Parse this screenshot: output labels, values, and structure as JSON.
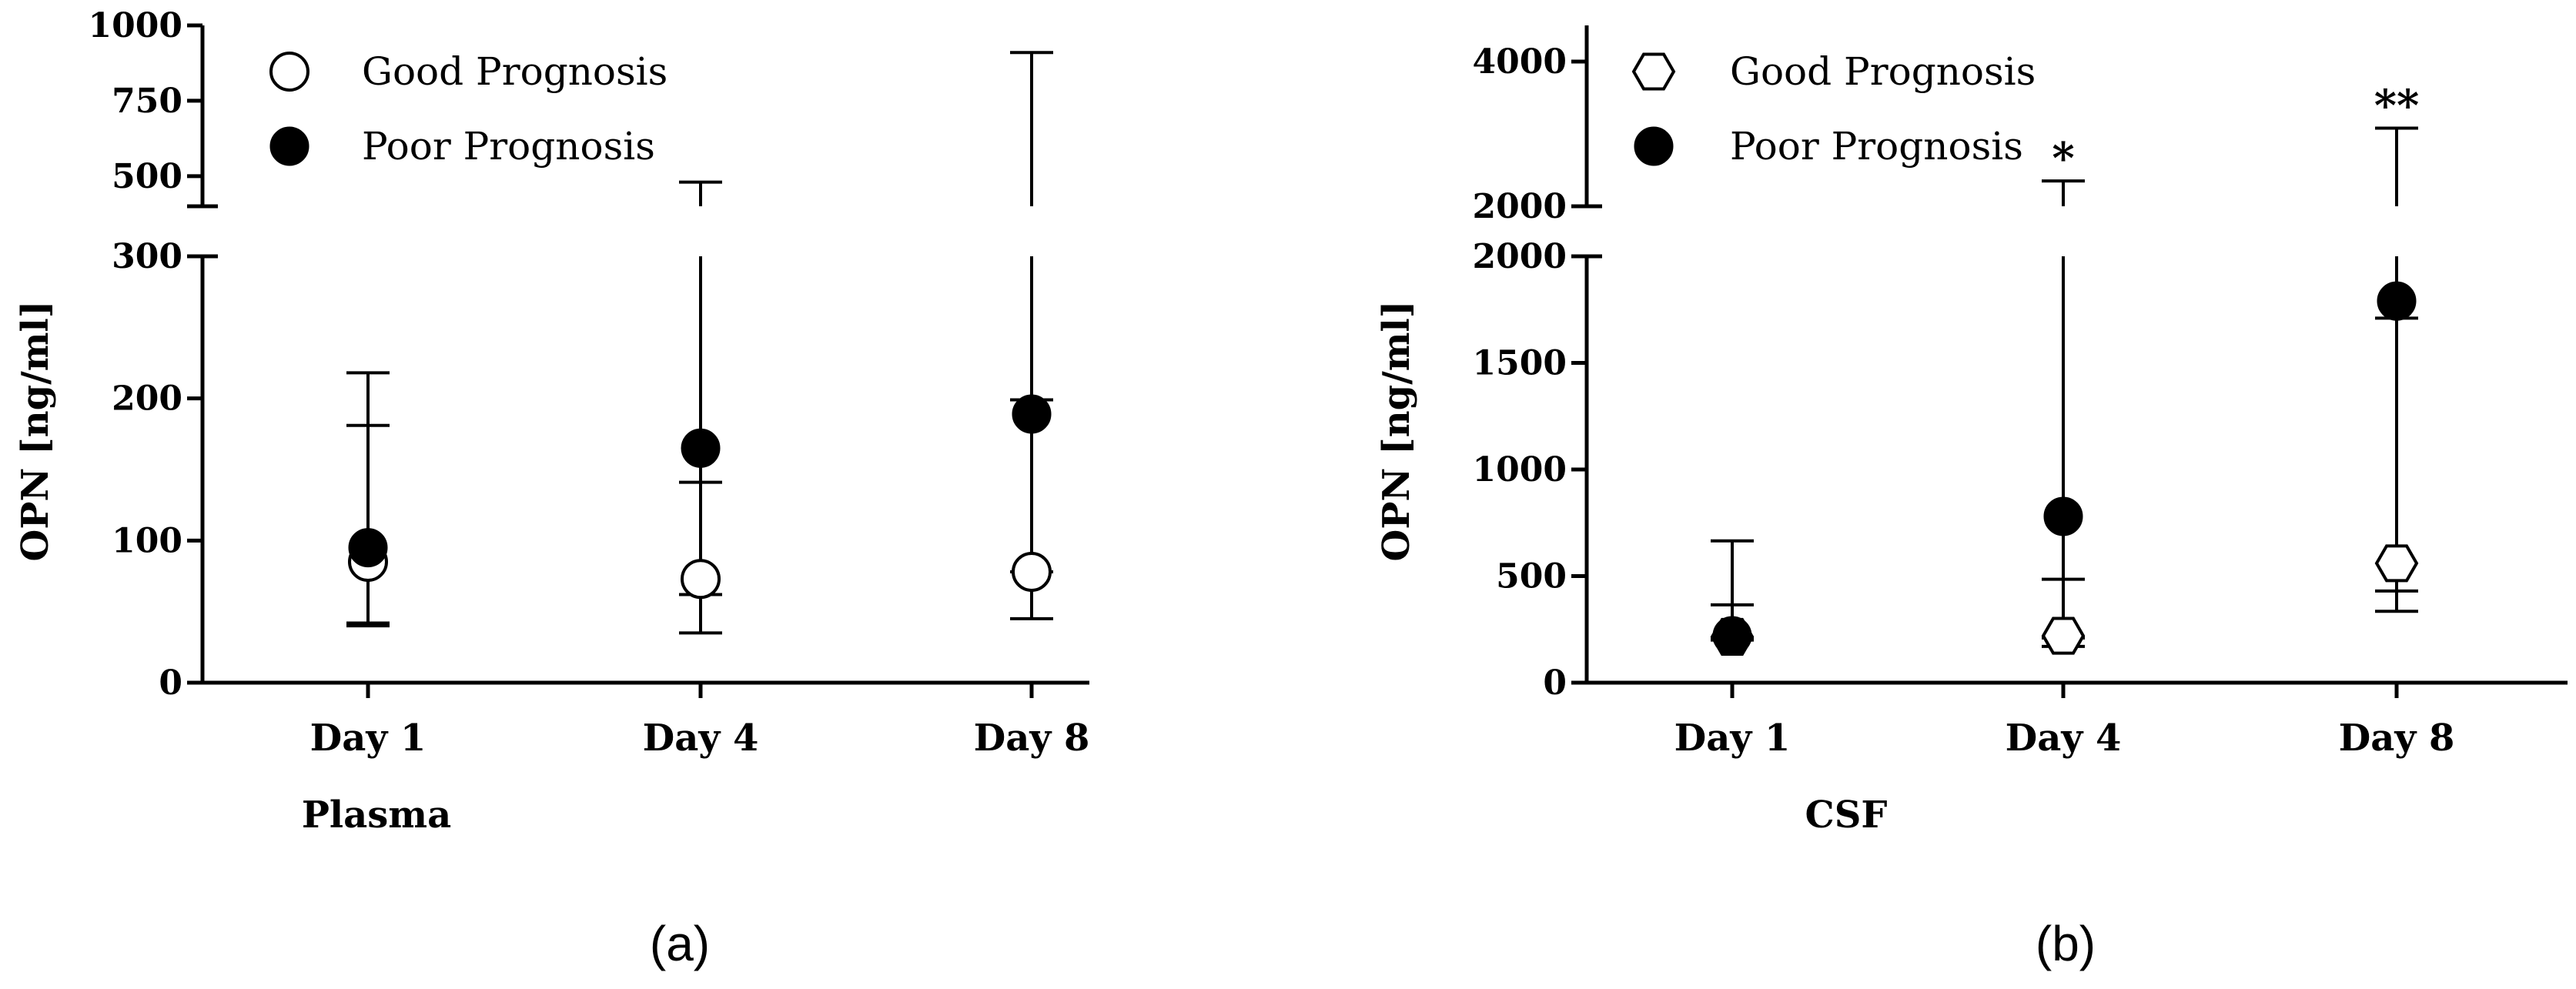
{
  "chart_data": [
    {
      "type": "scatter",
      "panel_label": "(a)",
      "xlabel": "Plasma",
      "ylabel": "OPN [ng/ml]",
      "categories": [
        "Day 1",
        "Day 4",
        "Day 8"
      ],
      "y_axis": {
        "broken": true,
        "lower_range": [
          0,
          300
        ],
        "upper_range": [
          400,
          1000
        ],
        "lower_ticks": [
          "0",
          "100",
          "200",
          "300"
        ],
        "upper_ticks": [
          "500",
          "750",
          "1000"
        ]
      },
      "legend": {
        "placement": "top-left",
        "entries": [
          "Good Prognosis",
          "Poor Prognosis"
        ]
      },
      "series": [
        {
          "name": "Good Prognosis",
          "marker": "open-circle",
          "values": [
            85,
            73,
            78
          ],
          "error_low": [
            40,
            35,
            45
          ],
          "error_high": [
            181,
            141,
            199
          ]
        },
        {
          "name": "Poor Prognosis",
          "marker": "filled-circle",
          "values": [
            95,
            165,
            189
          ],
          "error_low": [
            42,
            62,
            78
          ],
          "error_high": [
            218,
            480,
            910
          ]
        }
      ],
      "annotations": []
    },
    {
      "type": "scatter",
      "panel_label": "(b)",
      "xlabel": "CSF",
      "ylabel": "OPN [ng/ml]",
      "categories": [
        "Day 1",
        "Day 4",
        "Day 8"
      ],
      "y_axis": {
        "broken": true,
        "lower_range": [
          0,
          2000
        ],
        "upper_range": [
          2000,
          4500
        ],
        "lower_ticks": [
          "0",
          "500",
          "1000",
          "1500",
          "2000"
        ],
        "upper_ticks": [
          "2000",
          "4000"
        ]
      },
      "legend": {
        "placement": "top-left",
        "entries": [
          "Good Prognosis",
          "Poor Prognosis"
        ]
      },
      "series": [
        {
          "name": "Good Prognosis",
          "marker": "open-hexagon",
          "values": [
            215,
            220,
            560
          ],
          "error_low": [
            200,
            170,
            430
          ],
          "error_high": [
            365,
            485,
            1710
          ]
        },
        {
          "name": "Poor Prognosis",
          "marker": "filled-circle",
          "values": [
            220,
            780,
            1790
          ],
          "error_low": [
            205,
            210,
            335
          ],
          "error_high": [
            665,
            2350,
            3080
          ]
        }
      ],
      "annotations": [
        {
          "category": "Day 4",
          "text": "*"
        },
        {
          "category": "Day 8",
          "text": "**"
        }
      ]
    }
  ]
}
